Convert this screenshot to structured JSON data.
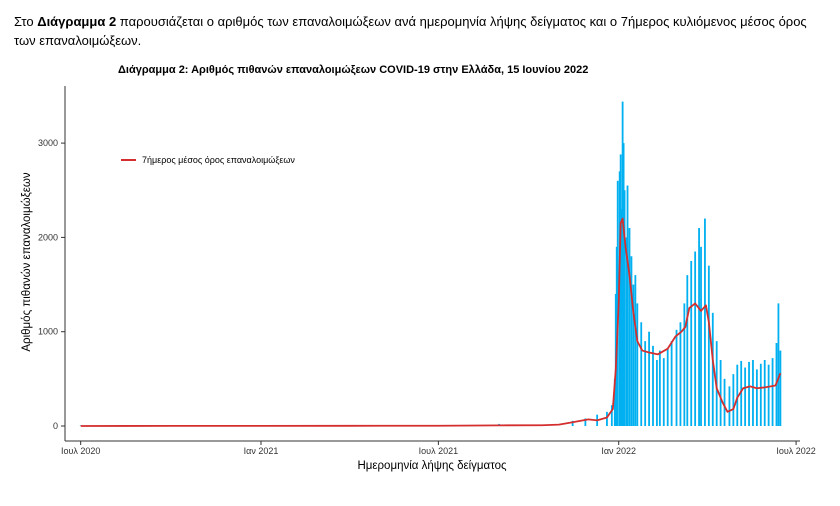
{
  "intro": {
    "prefix": "Στο ",
    "bold": "Διάγραμμα 2",
    "rest": " παρουσιάζεται ο αριθμός των επαναλοιμώξεων ανά ημερομηνία λήψης δείγματος και ο 7ήμερος κυλιόμενος μέσος όρος των επαναλοιμώξεων."
  },
  "chart_data": {
    "type": "bar",
    "title": "Διάγραμμα 2: Αριθμός πιθανών επαναλοιμώξεων COVID-19 στην Ελλάδα, 15 Ιουνίου 2022",
    "xlabel": "Ημερομηνία λήψης δείγματος",
    "ylabel": "Αριθμός πιθανών επαναλοιμώξεων",
    "x_range": [
      "2020-06-15",
      "2022-07-05"
    ],
    "x_ticks": [
      {
        "date": "2020-07-01",
        "label": "Ιουλ 2020"
      },
      {
        "date": "2021-01-01",
        "label": "Ιαν 2021"
      },
      {
        "date": "2021-07-01",
        "label": "Ιουλ 2021"
      },
      {
        "date": "2022-01-01",
        "label": "Ιαν 2022"
      },
      {
        "date": "2022-07-01",
        "label": "Ιουλ 2022"
      }
    ],
    "ylim": [
      0,
      3500
    ],
    "y_ticks": [
      0,
      1000,
      2000,
      3000
    ],
    "grid": false,
    "legend_position": "top-left",
    "series": [
      {
        "kind": "bars",
        "color": "#00B0F0",
        "points": [
          [
            "2020-07-01",
            1
          ],
          [
            "2020-10-01",
            3
          ],
          [
            "2021-01-01",
            4
          ],
          [
            "2021-04-01",
            6
          ],
          [
            "2021-07-01",
            10
          ],
          [
            "2021-09-01",
            22
          ],
          [
            "2021-10-15",
            15
          ],
          [
            "2021-11-15",
            55
          ],
          [
            "2021-11-28",
            80
          ],
          [
            "2021-12-10",
            120
          ],
          [
            "2021-12-20",
            150
          ],
          [
            "2021-12-25",
            220
          ],
          [
            "2021-12-28",
            500
          ],
          [
            "2021-12-29",
            1400
          ],
          [
            "2021-12-30",
            1900
          ],
          [
            "2021-12-31",
            2600
          ],
          [
            "2022-01-02",
            2700
          ],
          [
            "2022-01-03",
            2880
          ],
          [
            "2022-01-04",
            2300
          ],
          [
            "2022-01-05",
            3440
          ],
          [
            "2022-01-06",
            3000
          ],
          [
            "2022-01-07",
            2500
          ],
          [
            "2022-01-09",
            2000
          ],
          [
            "2022-01-10",
            2550
          ],
          [
            "2022-01-12",
            2100
          ],
          [
            "2022-01-14",
            1800
          ],
          [
            "2022-01-16",
            1500
          ],
          [
            "2022-01-18",
            1600
          ],
          [
            "2022-01-20",
            1300
          ],
          [
            "2022-01-24",
            1100
          ],
          [
            "2022-01-28",
            900
          ],
          [
            "2022-02-01",
            1000
          ],
          [
            "2022-02-05",
            850
          ],
          [
            "2022-02-09",
            700
          ],
          [
            "2022-02-12",
            800
          ],
          [
            "2022-02-16",
            720
          ],
          [
            "2022-02-20",
            820
          ],
          [
            "2022-02-24",
            900
          ],
          [
            "2022-03-01",
            1020
          ],
          [
            "2022-03-05",
            1100
          ],
          [
            "2022-03-09",
            1300
          ],
          [
            "2022-03-12",
            1600
          ],
          [
            "2022-03-16",
            1750
          ],
          [
            "2022-03-20",
            1850
          ],
          [
            "2022-03-24",
            2100
          ],
          [
            "2022-03-26",
            1900
          ],
          [
            "2022-03-30",
            2200
          ],
          [
            "2022-04-03",
            1700
          ],
          [
            "2022-04-07",
            1200
          ],
          [
            "2022-04-11",
            900
          ],
          [
            "2022-04-15",
            700
          ],
          [
            "2022-04-19",
            500
          ],
          [
            "2022-04-24",
            420
          ],
          [
            "2022-04-28",
            550
          ],
          [
            "2022-05-02",
            650
          ],
          [
            "2022-05-06",
            690
          ],
          [
            "2022-05-10",
            620
          ],
          [
            "2022-05-14",
            680
          ],
          [
            "2022-05-18",
            700
          ],
          [
            "2022-05-22",
            600
          ],
          [
            "2022-05-26",
            660
          ],
          [
            "2022-05-30",
            700
          ],
          [
            "2022-06-03",
            650
          ],
          [
            "2022-06-07",
            720
          ],
          [
            "2022-06-11",
            880
          ],
          [
            "2022-06-13",
            1300
          ],
          [
            "2022-06-15",
            800
          ]
        ]
      },
      {
        "kind": "line",
        "name": "7ήμερος μέσος όρος επαναλοιμώξεων",
        "color": "#D42E2E",
        "points": [
          [
            "2020-07-01",
            0
          ],
          [
            "2020-10-01",
            1
          ],
          [
            "2021-01-01",
            1
          ],
          [
            "2021-04-01",
            2
          ],
          [
            "2021-07-01",
            3
          ],
          [
            "2021-09-01",
            7
          ],
          [
            "2021-10-15",
            8
          ],
          [
            "2021-11-01",
            15
          ],
          [
            "2021-11-15",
            40
          ],
          [
            "2021-12-01",
            70
          ],
          [
            "2021-12-10",
            60
          ],
          [
            "2021-12-20",
            90
          ],
          [
            "2021-12-26",
            180
          ],
          [
            "2021-12-29",
            600
          ],
          [
            "2022-01-01",
            1300
          ],
          [
            "2022-01-03",
            2150
          ],
          [
            "2022-01-05",
            2200
          ],
          [
            "2022-01-08",
            1900
          ],
          [
            "2022-01-12",
            1600
          ],
          [
            "2022-01-16",
            1200
          ],
          [
            "2022-01-20",
            900
          ],
          [
            "2022-01-25",
            800
          ],
          [
            "2022-02-01",
            780
          ],
          [
            "2022-02-10",
            760
          ],
          [
            "2022-02-20",
            820
          ],
          [
            "2022-02-28",
            950
          ],
          [
            "2022-03-06",
            1000
          ],
          [
            "2022-03-10",
            1050
          ],
          [
            "2022-03-14",
            1250
          ],
          [
            "2022-03-20",
            1300
          ],
          [
            "2022-03-26",
            1220
          ],
          [
            "2022-03-31",
            1280
          ],
          [
            "2022-04-03",
            1100
          ],
          [
            "2022-04-07",
            700
          ],
          [
            "2022-04-11",
            400
          ],
          [
            "2022-04-17",
            250
          ],
          [
            "2022-04-22",
            150
          ],
          [
            "2022-04-28",
            180
          ],
          [
            "2022-05-02",
            300
          ],
          [
            "2022-05-08",
            400
          ],
          [
            "2022-05-15",
            420
          ],
          [
            "2022-05-22",
            400
          ],
          [
            "2022-05-30",
            410
          ],
          [
            "2022-06-05",
            420
          ],
          [
            "2022-06-10",
            430
          ],
          [
            "2022-06-15",
            560
          ]
        ]
      }
    ]
  }
}
